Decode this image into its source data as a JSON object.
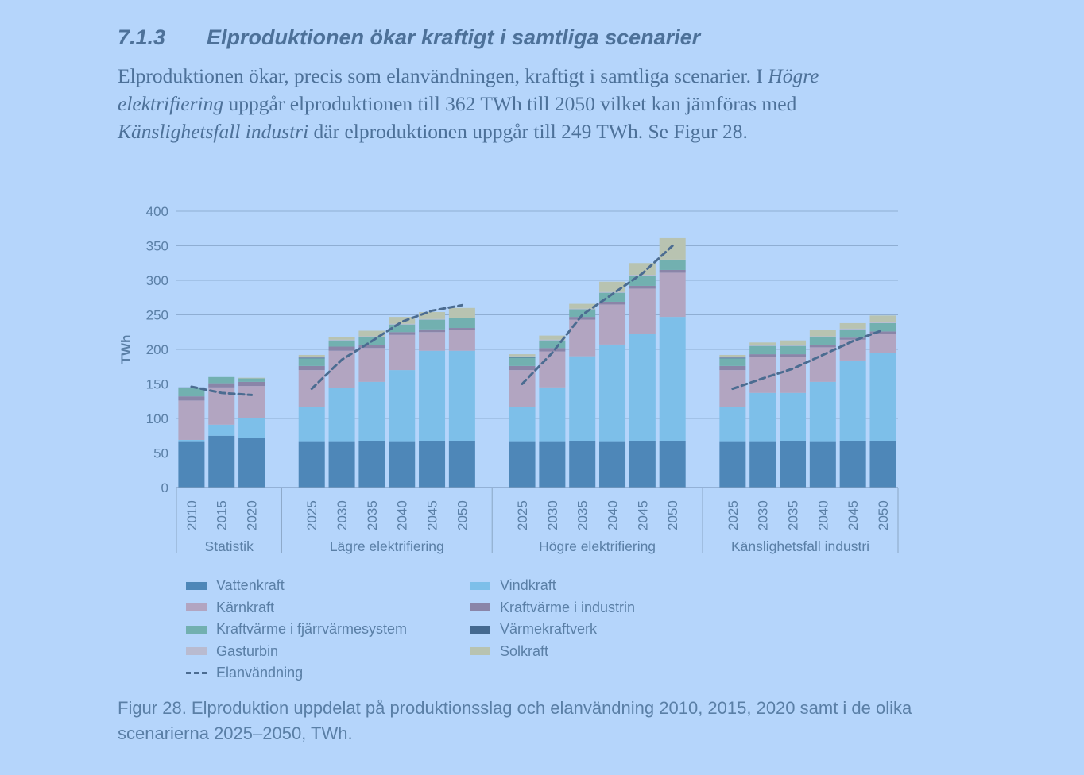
{
  "section": {
    "number": "7.1.3",
    "title": "Elproduktionen ökar kraftigt i samtliga scenarier"
  },
  "intro": {
    "p1": "Elproduktionen ökar, precis som elanvändningen, kraftigt i samtliga scenarier. I ",
    "em1": "Högre elektrifiering",
    "p2": " uppgår elproduktionen till 362 TWh till 2050 vilket kan jämföras med ",
    "em2": "Känslighetsfall industri",
    "p3": " där elproduktionen uppgår till 249 TWh. Se Figur 28."
  },
  "caption": "Figur 28. Elproduktion uppdelat på produktionsslag och elanvändning 2010, 2015, 2020 samt i de olika scenarierna 2025–2050, TWh.",
  "chart_data": {
    "type": "bar",
    "stacked": true,
    "ylabel": "TWh",
    "ylim": [
      0,
      400
    ],
    "yticks": [
      0,
      50,
      100,
      150,
      200,
      250,
      300,
      350,
      400
    ],
    "grid": true,
    "legend_position": "bottom",
    "groups": [
      {
        "name": "Statistik",
        "categories": [
          "2010",
          "2015",
          "2020"
        ]
      },
      {
        "name": "Lägre elektrifiering",
        "categories": [
          "2025",
          "2030",
          "2035",
          "2040",
          "2045",
          "2050"
        ]
      },
      {
        "name": "Högre elektrifiering",
        "categories": [
          "2025",
          "2030",
          "2035",
          "2040",
          "2045",
          "2050"
        ]
      },
      {
        "name": "Känslighetsfall industri",
        "categories": [
          "2025",
          "2030",
          "2035",
          "2040",
          "2045",
          "2050"
        ]
      }
    ],
    "series": [
      {
        "name": "Vattenkraft",
        "color": "#4e87b8",
        "values": [
          66,
          75,
          72,
          66,
          66,
          67,
          66,
          67,
          67,
          66,
          66,
          67,
          66,
          67,
          67,
          66,
          66,
          67,
          66,
          67,
          67
        ]
      },
      {
        "name": "Vindkraft",
        "color": "#7dbfe9",
        "values": [
          3,
          16,
          28,
          51,
          78,
          86,
          104,
          131,
          131,
          51,
          79,
          123,
          141,
          156,
          180,
          51,
          71,
          70,
          87,
          117,
          128
        ]
      },
      {
        "name": "Kärnkraft",
        "color": "#b2a5c1",
        "values": [
          57,
          54,
          47,
          53,
          54,
          49,
          51,
          27,
          30,
          53,
          52,
          53,
          58,
          65,
          64,
          53,
          52,
          52,
          50,
          30,
          28
        ]
      },
      {
        "name": "Kraftvärme i industrin",
        "color": "#8a85a8",
        "values": [
          6,
          6,
          6,
          6,
          6,
          4,
          4,
          4,
          3,
          6,
          5,
          4,
          4,
          4,
          4,
          6,
          4,
          4,
          3,
          3,
          3
        ]
      },
      {
        "name": "Kraftvärme i fjärrvärmesystem",
        "color": "#72b0b0",
        "values": [
          12,
          9,
          5,
          11,
          9,
          12,
          11,
          14,
          14,
          12,
          11,
          11,
          13,
          15,
          14,
          11,
          12,
          12,
          12,
          12,
          12
        ]
      },
      {
        "name": "Värmekraftverk",
        "color": "#45698f",
        "values": [
          1,
          0,
          0,
          1,
          0,
          0,
          0,
          0,
          0,
          1,
          0,
          0,
          0,
          0,
          0,
          1,
          0,
          0,
          0,
          0,
          0
        ]
      },
      {
        "name": "Gasturbin",
        "color": "#b9bbd0",
        "values": [
          0,
          0,
          0,
          1,
          1,
          1,
          1,
          1,
          1,
          1,
          1,
          1,
          1,
          1,
          1,
          1,
          1,
          1,
          1,
          1,
          1
        ]
      },
      {
        "name": "Solkraft",
        "color": "#b8c3b1",
        "values": [
          0,
          0,
          1,
          3,
          4,
          8,
          10,
          10,
          14,
          3,
          6,
          7,
          15,
          17,
          31,
          3,
          4,
          7,
          9,
          8,
          10
        ]
      }
    ],
    "line": {
      "name": "Elanvändning",
      "color": "#4b6c91",
      "values": [
        146,
        137,
        134,
        143,
        185,
        212,
        240,
        256,
        264,
        150,
        195,
        250,
        280,
        310,
        350,
        143,
        158,
        172,
        192,
        212,
        228
      ]
    }
  }
}
